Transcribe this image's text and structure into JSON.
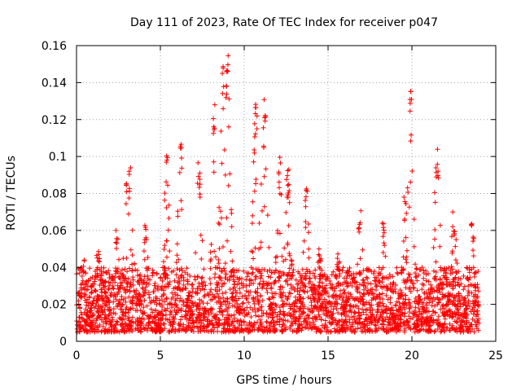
{
  "chart_data": {
    "type": "scatter",
    "title": "Day 111 of 2023, Rate Of TEC Index for receiver p047",
    "xlabel": "GPS time / hours",
    "ylabel": "ROTI / TECUs",
    "xlim": [
      0,
      25
    ],
    "ylim": [
      0,
      0.16
    ],
    "x_ticks": [
      0,
      5,
      10,
      15,
      20,
      25
    ],
    "y_ticks": [
      0,
      0.02,
      0.04,
      0.06,
      0.08,
      0.1,
      0.12,
      0.14,
      0.16
    ],
    "x_tick_labels": [
      "0",
      "5",
      "10",
      "15",
      "20",
      "25"
    ],
    "y_tick_labels": [
      "0",
      "0.02",
      "0.04",
      "0.06",
      "0.08",
      "0.1",
      "0.12",
      "0.14",
      "0.16"
    ],
    "grid": true,
    "marker": "+",
    "color": "#ff0000",
    "series": [
      {
        "name": "ROTI",
        "x_range_hours": [
          0,
          24
        ],
        "baseline_range": [
          0.005,
          0.04
        ],
        "peaks": [
          {
            "x": 0.4,
            "y": 0.045
          },
          {
            "x": 1.3,
            "y": 0.053
          },
          {
            "x": 2.4,
            "y": 0.06
          },
          {
            "x": 3.0,
            "y": 0.09
          },
          {
            "x": 3.2,
            "y": 0.095
          },
          {
            "x": 4.1,
            "y": 0.063
          },
          {
            "x": 5.4,
            "y": 0.102
          },
          {
            "x": 6.2,
            "y": 0.111
          },
          {
            "x": 7.3,
            "y": 0.099
          },
          {
            "x": 8.2,
            "y": 0.13
          },
          {
            "x": 8.7,
            "y": 0.15
          },
          {
            "x": 9.0,
            "y": 0.157
          },
          {
            "x": 10.7,
            "y": 0.13
          },
          {
            "x": 11.2,
            "y": 0.131
          },
          {
            "x": 12.1,
            "y": 0.1
          },
          {
            "x": 12.6,
            "y": 0.095
          },
          {
            "x": 13.7,
            "y": 0.085
          },
          {
            "x": 14.5,
            "y": 0.05
          },
          {
            "x": 15.6,
            "y": 0.048
          },
          {
            "x": 16.9,
            "y": 0.073
          },
          {
            "x": 18.3,
            "y": 0.065
          },
          {
            "x": 19.6,
            "y": 0.078
          },
          {
            "x": 19.9,
            "y": 0.137
          },
          {
            "x": 21.5,
            "y": 0.108
          },
          {
            "x": 22.5,
            "y": 0.07
          },
          {
            "x": 23.6,
            "y": 0.065
          }
        ]
      }
    ]
  }
}
